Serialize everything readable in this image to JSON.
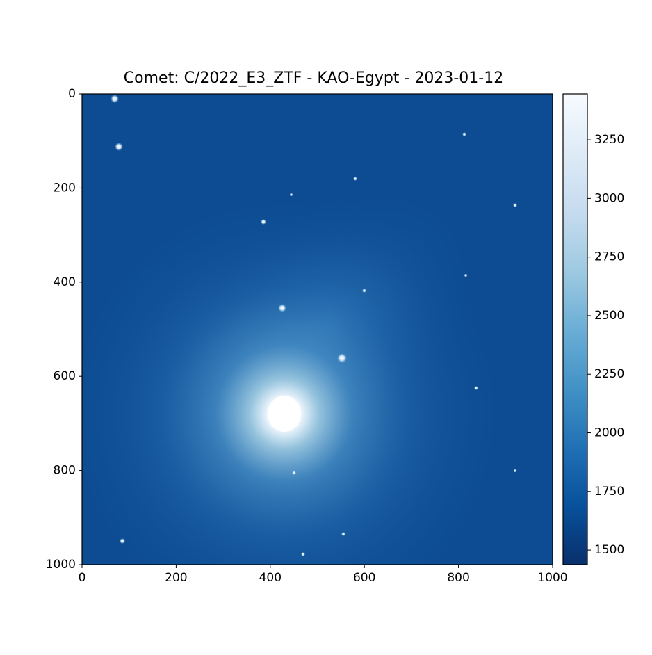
{
  "chart_data": {
    "type": "image",
    "title": "Comet: C/2022_E3_ZTF - KAO-Egypt - 2023-01-12",
    "colormap": "Blues_r",
    "xlim": [
      0,
      1000
    ],
    "xticks": [
      0,
      200,
      400,
      600,
      800,
      1000
    ],
    "ylim": [
      1000,
      0
    ],
    "yticks": [
      0,
      200,
      400,
      600,
      800,
      1000
    ],
    "clim": [
      1438,
      3446
    ],
    "cticks": [
      1500,
      1750,
      2000,
      2250,
      2500,
      2750,
      3000,
      3250
    ]
  }
}
